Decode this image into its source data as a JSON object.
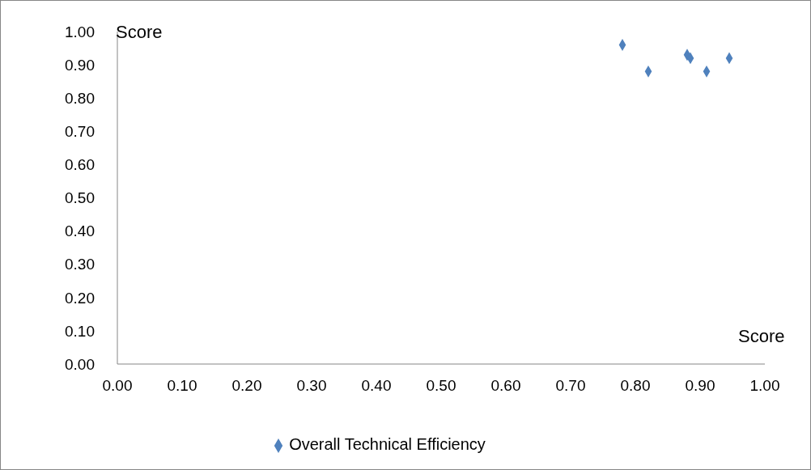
{
  "chart_data": {
    "type": "scatter",
    "xlabel": "Score",
    "ylabel": "Score",
    "x": [
      0.78,
      0.82,
      0.88,
      0.885,
      0.91,
      0.945
    ],
    "series": [
      {
        "name": "Overall Technical Efficiency",
        "color": "#4f81bd",
        "values": [
          0.96,
          0.88,
          0.93,
          0.92,
          0.88,
          0.92
        ]
      }
    ],
    "xlim": [
      0,
      1
    ],
    "ylim": [
      0,
      1
    ],
    "xticks": [
      {
        "value": 0,
        "label": "0.00"
      },
      {
        "value": 0.1,
        "label": "0.10"
      },
      {
        "value": 0.2,
        "label": "0.20"
      },
      {
        "value": 0.3,
        "label": "0.30"
      },
      {
        "value": 0.4,
        "label": "0.40"
      },
      {
        "value": 0.5,
        "label": "0.50"
      },
      {
        "value": 0.6,
        "label": "0.60"
      },
      {
        "value": 0.7,
        "label": "0.70"
      },
      {
        "value": 0.8,
        "label": "0.80"
      },
      {
        "value": 0.9,
        "label": "0.90"
      },
      {
        "value": 1,
        "label": "1.00"
      }
    ],
    "yticks": [
      {
        "value": 0,
        "label": "0.00"
      },
      {
        "value": 0.1,
        "label": "0.10"
      },
      {
        "value": 0.2,
        "label": "0.20"
      },
      {
        "value": 0.3,
        "label": "0.30"
      },
      {
        "value": 0.4,
        "label": "0.40"
      },
      {
        "value": 0.5,
        "label": "0.50"
      },
      {
        "value": 0.6,
        "label": "0.60"
      },
      {
        "value": 0.7,
        "label": "0.70"
      },
      {
        "value": 0.8,
        "label": "0.80"
      },
      {
        "value": 0.9,
        "label": "0.90"
      },
      {
        "value": 1,
        "label": "1.00"
      }
    ],
    "grid": false,
    "legend": "bottom",
    "marker": "diamond"
  }
}
